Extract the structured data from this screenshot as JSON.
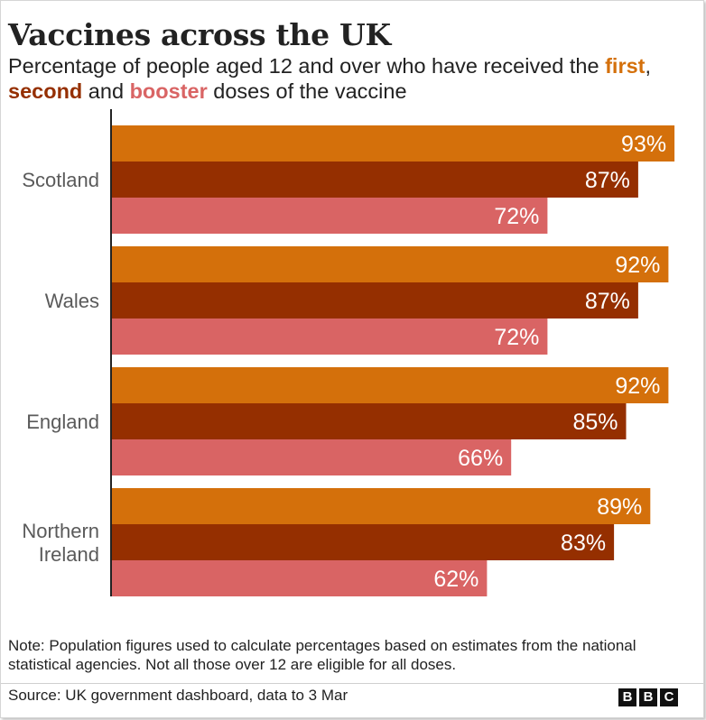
{
  "header": {
    "title": "Vaccines across the UK",
    "subtitle_pre": "Percentage of people aged 12 and over who have received the ",
    "first": "first",
    "comma": ", ",
    "second": "second",
    "and": " and ",
    "booster": "booster",
    "subtitle_post": " doses of the vaccine"
  },
  "colors": {
    "first": "#d4700b",
    "second": "#952f00",
    "booster": "#d96464"
  },
  "footer": {
    "note": "Note: Population figures used to calculate percentages based on estimates from the national statistical agencies. Not all those over 12 are eligible for all doses.",
    "source": "Source: UK government dashboard, data to 3 Mar",
    "logo_letters": [
      "B",
      "B",
      "C"
    ]
  },
  "chart_data": {
    "type": "bar",
    "orientation": "horizontal",
    "categories": [
      [
        "Scotland"
      ],
      [
        "Wales"
      ],
      [
        "England"
      ],
      [
        "Northern",
        "Ireland"
      ]
    ],
    "series": [
      {
        "name": "first",
        "values": [
          93,
          92,
          92,
          89
        ]
      },
      {
        "name": "second",
        "values": [
          87,
          87,
          85,
          83
        ]
      },
      {
        "name": "booster",
        "values": [
          72,
          72,
          66,
          62
        ]
      }
    ],
    "value_suffix": "%",
    "xlim": [
      0,
      100
    ],
    "grid": false,
    "data_labels": true
  }
}
